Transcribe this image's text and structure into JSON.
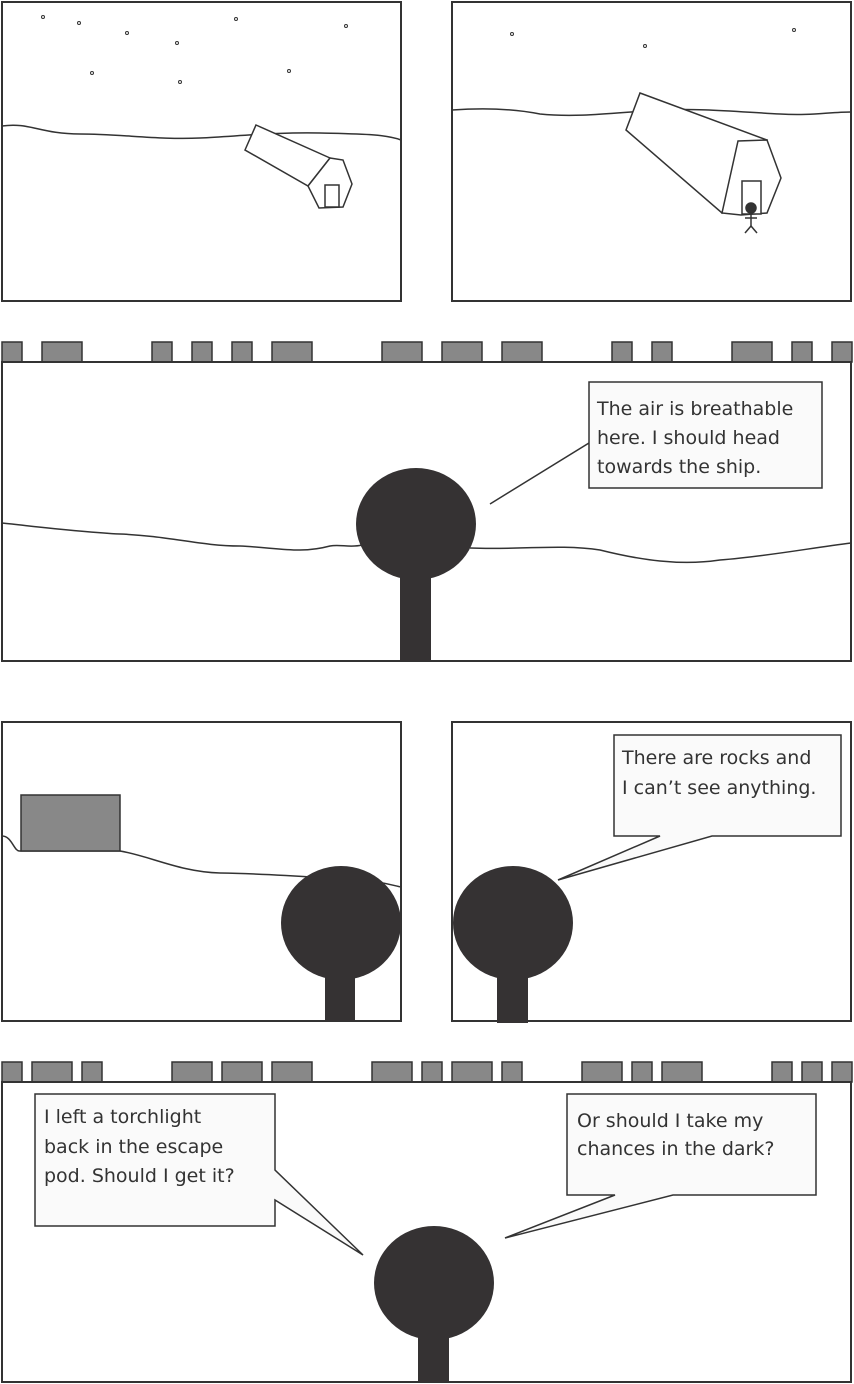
{
  "panels": {
    "panel3": {
      "speech": [
        "The air is breathable",
        "here. I should head",
        "towards the ship."
      ]
    },
    "panel5": {
      "speech": [
        "There are rocks and",
        "I can’t see anything."
      ]
    },
    "panel6": {
      "speech_left": [
        "I left a torchlight",
        "back in the escape",
        "pod. Should I get it?"
      ],
      "speech_right": [
        "Or should I take my",
        "chances in the dark?"
      ]
    }
  },
  "colors": {
    "ink": "#333333",
    "figure": "#353233",
    "rock": "#888888",
    "bubble": "#fafafa",
    "background": "#ffffff"
  }
}
